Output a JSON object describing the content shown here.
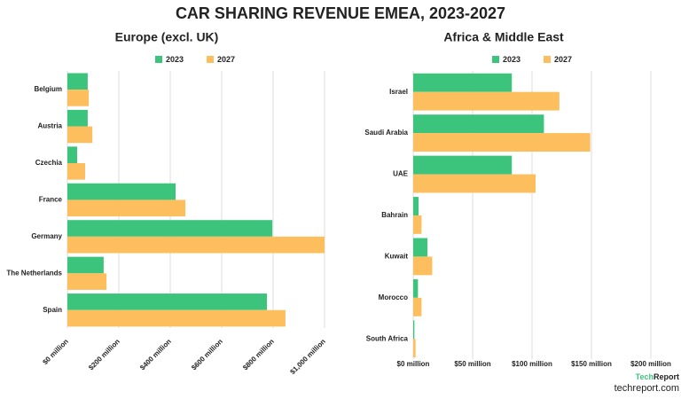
{
  "title": "CAR SHARING REVENUE EMEA, 2023-2027",
  "chart_data": [
    {
      "type": "bar",
      "orientation": "horizontal",
      "title": "Europe (excl. UK)",
      "categories": [
        "Belgium",
        "Austria",
        "Czechia",
        "France",
        "Germany",
        "The Netherlands",
        "Spain"
      ],
      "series": [
        {
          "name": "2023",
          "color": "#3cc47c",
          "values": [
            79,
            79,
            38,
            421,
            797,
            141,
            776
          ]
        },
        {
          "name": "2027",
          "color": "#fdbf5e",
          "values": [
            83,
            97,
            69,
            459,
            1000,
            152,
            848
          ]
        }
      ],
      "xlim": [
        0,
        1000
      ],
      "xticks": [
        {
          "value": 0,
          "label": "$0 million"
        },
        {
          "value": 200,
          "label": "$200 million"
        },
        {
          "value": 400,
          "label": "$400 million"
        },
        {
          "value": 600,
          "label": "$600 million"
        },
        {
          "value": 800,
          "label": "$800 million"
        },
        {
          "value": 1000,
          "label": "$1,000 million"
        }
      ],
      "grid": true,
      "legend": "top"
    },
    {
      "type": "bar",
      "orientation": "horizontal",
      "title": "Africa & Middle East",
      "categories": [
        "Israel",
        "Saudi Arabia",
        "UAE",
        "Bahrain",
        "Kuwait",
        "Morocco",
        "South Africa"
      ],
      "series": [
        {
          "name": "2023",
          "color": "#3cc47c",
          "values": [
            83,
            110,
            83,
            4.5,
            12,
            4,
            1
          ]
        },
        {
          "name": "2027",
          "color": "#fdbf5e",
          "values": [
            123,
            149,
            103,
            7,
            16,
            7,
            2
          ]
        }
      ],
      "xlim": [
        0,
        200
      ],
      "xticks": [
        {
          "value": 0,
          "label": "$0 million"
        },
        {
          "value": 50,
          "label": "$50 million"
        },
        {
          "value": 100,
          "label": "$100 million"
        },
        {
          "value": 150,
          "label": "$150 million"
        },
        {
          "value": 200,
          "label": "$200 million"
        }
      ],
      "grid": true,
      "legend": "top"
    }
  ],
  "footer": {
    "logo_1": "Tech",
    "logo_2": "Report",
    "site": "techreport.com"
  }
}
